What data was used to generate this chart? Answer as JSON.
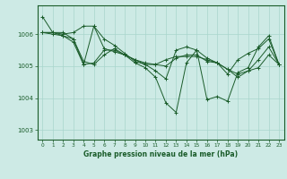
{
  "title": "Graphe pression niveau de la mer (hPa)",
  "bg_color": "#cdeae5",
  "line_color": "#1a5c2a",
  "grid_color": "#a8d5cc",
  "axis_color": "#1a5c2a",
  "ylim": [
    1002.7,
    1006.9
  ],
  "xlim": [
    -0.5,
    23.5
  ],
  "yticks": [
    1003,
    1004,
    1005,
    1006
  ],
  "xticks": [
    0,
    1,
    2,
    3,
    4,
    5,
    6,
    7,
    8,
    9,
    10,
    11,
    12,
    13,
    14,
    15,
    16,
    17,
    18,
    19,
    20,
    21,
    22,
    23
  ],
  "series": [
    [
      1006.55,
      1006.05,
      1006.05,
      1005.85,
      1005.05,
      1006.25,
      1005.55,
      1005.45,
      1005.35,
      1005.1,
      1004.95,
      1004.65,
      1003.85,
      1003.55,
      1005.1,
      1005.5,
      1003.95,
      1004.05,
      1003.9,
      1004.8,
      1004.95,
      1005.6,
      1005.95,
      1005.05
    ],
    [
      1006.05,
      1006.0,
      1005.95,
      1005.75,
      1005.05,
      1005.1,
      1005.5,
      1005.5,
      1005.35,
      1005.2,
      1005.05,
      1005.05,
      1005.2,
      1005.3,
      1005.3,
      1005.3,
      1005.2,
      1005.1,
      1004.9,
      1004.75,
      1004.85,
      1005.2,
      1005.6,
      1005.05
    ],
    [
      1006.05,
      1006.05,
      1006.0,
      1006.05,
      1006.25,
      1006.25,
      1005.85,
      1005.65,
      1005.4,
      1005.15,
      1005.05,
      1004.85,
      1004.6,
      1005.5,
      1005.6,
      1005.5,
      1005.25,
      1005.1,
      1004.75,
      1005.2,
      1005.4,
      1005.55,
      1005.85,
      1005.05
    ],
    [
      1006.05,
      1006.05,
      1005.95,
      1005.85,
      1005.15,
      1005.05,
      1005.35,
      1005.55,
      1005.35,
      1005.2,
      1005.1,
      1005.05,
      1005.0,
      1005.25,
      1005.35,
      1005.35,
      1005.15,
      1005.1,
      1004.9,
      1004.65,
      1004.85,
      1004.95,
      1005.35,
      1005.05
    ]
  ]
}
